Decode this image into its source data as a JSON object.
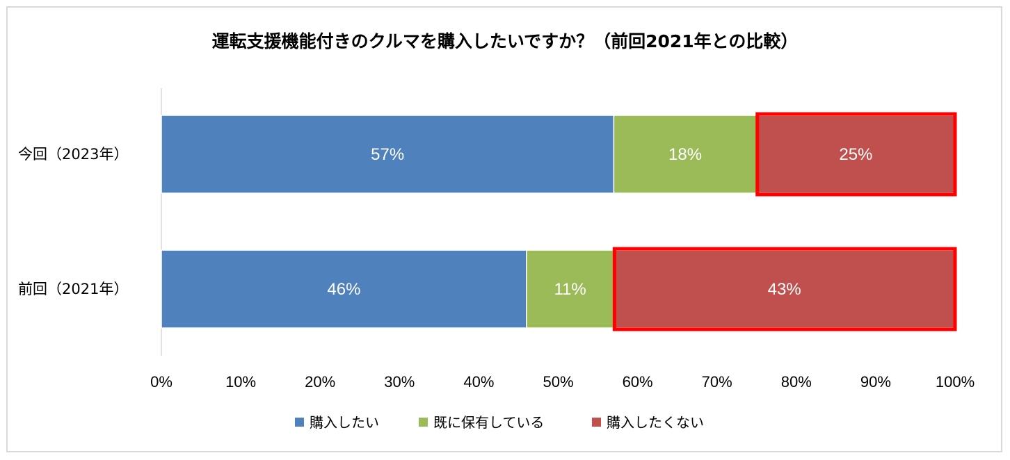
{
  "chart_data": {
    "type": "bar",
    "orientation": "horizontal",
    "stacked": true,
    "title": "運転支援機能付きのクルマを購入したいですか？（前回2021年との比較）",
    "categories": [
      "今回（2023年）",
      "前回（2021年）"
    ],
    "series": [
      {
        "name": "購入したい",
        "values": [
          57,
          46
        ],
        "labels": [
          "57%",
          "46%"
        ],
        "color": "#4f81bd"
      },
      {
        "name": "既に保有している",
        "values": [
          18,
          11
        ],
        "labels": [
          "18%",
          "11%"
        ],
        "color": "#9bbb59"
      },
      {
        "name": "購入したくない",
        "values": [
          25,
          43
        ],
        "labels": [
          "25%",
          "43%"
        ],
        "color": "#c0504d"
      }
    ],
    "xlim": [
      0,
      100
    ],
    "x_ticks": [
      0,
      10,
      20,
      30,
      40,
      50,
      60,
      70,
      80,
      90,
      100
    ],
    "x_tick_labels": [
      "0%",
      "10%",
      "20%",
      "30%",
      "40%",
      "50%",
      "60%",
      "70%",
      "80%",
      "90%",
      "100%"
    ],
    "highlight_series": "購入したくない",
    "highlight_color": "#ff0000",
    "grid": false,
    "legend_position": "bottom"
  }
}
